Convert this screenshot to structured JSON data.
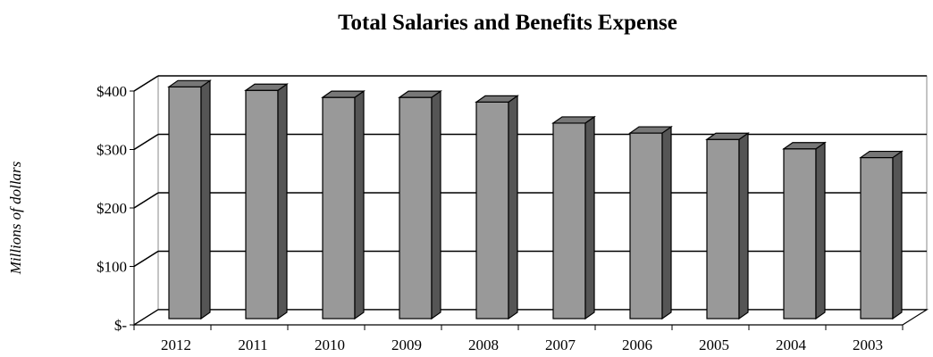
{
  "chart_data": {
    "type": "bar",
    "title": "Total Salaries and Benefits Expense",
    "xlabel": "",
    "ylabel": "Millions of dollars",
    "categories": [
      "2012",
      "2011",
      "2010",
      "2009",
      "2008",
      "2007",
      "2006",
      "2005",
      "2004",
      "2003"
    ],
    "values": [
      398,
      392,
      380,
      380,
      372,
      336,
      319,
      308,
      292,
      277
    ],
    "ylim": [
      0,
      400
    ],
    "yticks": [
      0,
      100,
      200,
      300,
      400
    ],
    "ytick_labels": [
      "$-",
      "$100",
      "$200",
      "$300",
      "$400"
    ],
    "grid": true,
    "legend": "none",
    "three_d": true,
    "colors": {
      "bar_front": "#999999",
      "bar_side": "#555555",
      "bar_top": "#777777",
      "outline": "#000000",
      "gridline": "#000000",
      "wall": "#ffffff"
    }
  }
}
